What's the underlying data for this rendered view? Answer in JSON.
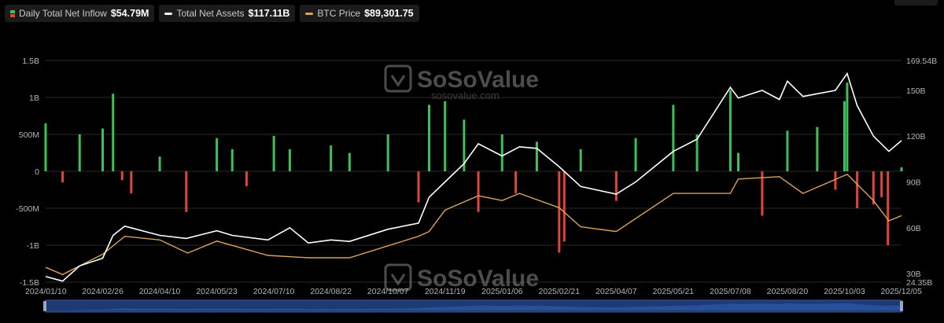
{
  "legend": {
    "inflow": {
      "label": "Daily Total Net Inflow",
      "value": "$54.79M",
      "icon": "bar-swatch-icon"
    },
    "assets": {
      "label": "Total Net Assets",
      "value": "$117.11B",
      "color": "#ffffff"
    },
    "btc": {
      "label": "BTC Price",
      "value": "$89,301.75",
      "color": "#d9a25a"
    }
  },
  "watermark": {
    "name": "SoSoValue",
    "url": "sosovalue.com"
  },
  "colors": {
    "inflow_pos": "#3fbf5a",
    "inflow_neg": "#e0453a",
    "assets": "#ffffff",
    "btc": "#d9a25a",
    "grid": "#2a2a2a",
    "navigator": "#1d3a73"
  },
  "chart_data": {
    "type": "bar+line",
    "grid": true,
    "x_ticks": [
      "2024/01/10",
      "2024/02/26",
      "2024/04/10",
      "2024/05/23",
      "2024/07/10",
      "2024/08/22",
      "2024/10/07",
      "2024/11/19",
      "2025/01/06",
      "2025/02/21",
      "2025/04/07",
      "2025/05/21",
      "2025/07/08",
      "2025/08/20",
      "2025/10/03",
      "2025/12/05"
    ],
    "left_axis": {
      "ticks": [
        "1.5B",
        "1B",
        "500M",
        "0",
        "-500M",
        "-1B",
        "-1.5B"
      ],
      "values": [
        1500,
        1000,
        500,
        0,
        -500,
        -1000,
        -1500
      ],
      "ylim": [
        -1500,
        1500
      ],
      "unit": "M"
    },
    "right_axis": {
      "ticks": [
        "169.54B",
        "150B",
        "120B",
        "90B",
        "60B",
        "30B",
        "24.35B"
      ],
      "values": [
        169.54,
        150,
        120,
        90,
        60,
        30,
        24.35
      ],
      "ylim": [
        24.35,
        169.54
      ],
      "unit": "B"
    },
    "series": [
      {
        "name": "Daily Total Net Inflow",
        "type": "bar",
        "axis": "left",
        "x": [
          "2024/01/10",
          "2024/01/24",
          "2024/02/07",
          "2024/02/26",
          "2024/03/05",
          "2024/03/12",
          "2024/03/19",
          "2024/04/10",
          "2024/04/30",
          "2024/05/23",
          "2024/06/05",
          "2024/06/17",
          "2024/07/10",
          "2024/07/22",
          "2024/08/22",
          "2024/09/06",
          "2024/10/07",
          "2024/10/30",
          "2024/11/07",
          "2024/11/19",
          "2024/12/05",
          "2024/12/17",
          "2025/01/06",
          "2025/01/17",
          "2025/02/03",
          "2025/02/21",
          "2025/02/25",
          "2025/03/10",
          "2025/04/07",
          "2025/04/22",
          "2025/05/21",
          "2025/06/10",
          "2025/07/08",
          "2025/07/14",
          "2025/08/01",
          "2025/08/20",
          "2025/09/12",
          "2025/09/26",
          "2025/10/03",
          "2025/10/06",
          "2025/10/17",
          "2025/11/04",
          "2025/11/13",
          "2025/11/20",
          "2025/12/05"
        ],
        "values": [
          650,
          -150,
          500,
          580,
          1050,
          -120,
          -300,
          200,
          -550,
          450,
          300,
          -200,
          480,
          300,
          350,
          250,
          500,
          -420,
          900,
          950,
          700,
          -550,
          500,
          -300,
          400,
          -1100,
          -950,
          300,
          -400,
          450,
          900,
          500,
          1100,
          250,
          -600,
          550,
          600,
          -250,
          950,
          1200,
          -500,
          -450,
          -350,
          -1000,
          55
        ]
      },
      {
        "name": "Total Net Assets",
        "type": "line",
        "axis": "right",
        "x": [
          "2024/01/10",
          "2024/01/24",
          "2024/02/07",
          "2024/02/26",
          "2024/03/05",
          "2024/03/14",
          "2024/04/10",
          "2024/04/30",
          "2024/05/23",
          "2024/06/05",
          "2024/07/05",
          "2024/07/22",
          "2024/08/05",
          "2024/08/22",
          "2024/09/06",
          "2024/10/07",
          "2024/10/30",
          "2024/11/07",
          "2024/11/19",
          "2024/12/05",
          "2024/12/17",
          "2025/01/06",
          "2025/01/20",
          "2025/02/03",
          "2025/02/21",
          "2025/03/10",
          "2025/04/07",
          "2025/04/22",
          "2025/05/21",
          "2025/06/10",
          "2025/07/08",
          "2025/07/14",
          "2025/08/01",
          "2025/08/14",
          "2025/08/20",
          "2025/09/01",
          "2025/09/26",
          "2025/10/06",
          "2025/10/17",
          "2025/11/04",
          "2025/11/21",
          "2025/12/05"
        ],
        "values": [
          28,
          25,
          35,
          40,
          55,
          61,
          55,
          53,
          58,
          55,
          52,
          60,
          50,
          52,
          51,
          59,
          63,
          80,
          90,
          102,
          115,
          107,
          113,
          112,
          100,
          87,
          82,
          90,
          110,
          118,
          152,
          145,
          150,
          144,
          156,
          146,
          150,
          161,
          140,
          120,
          110,
          117.11
        ]
      },
      {
        "name": "BTC Price",
        "type": "line",
        "axis": "right",
        "x": [
          "2024/01/10",
          "2024/01/24",
          "2024/02/26",
          "2024/03/14",
          "2024/04/10",
          "2024/05/01",
          "2024/05/23",
          "2024/07/05",
          "2024/08/05",
          "2024/09/06",
          "2024/10/30",
          "2024/11/07",
          "2024/11/19",
          "2024/12/17",
          "2025/01/06",
          "2025/01/20",
          "2025/02/21",
          "2025/03/10",
          "2025/04/07",
          "2025/05/21",
          "2025/07/08",
          "2025/07/14",
          "2025/08/14",
          "2025/09/01",
          "2025/10/06",
          "2025/11/04",
          "2025/11/21",
          "2025/12/05"
        ],
        "values": [
          46000,
          40000,
          57000,
          72000,
          69000,
          58000,
          68000,
          56000,
          54000,
          54000,
          72000,
          76000,
          94000,
          106000,
          102000,
          108000,
          96000,
          80000,
          76000,
          108000,
          108000,
          120000,
          122000,
          108000,
          124000,
          102000,
          85000,
          89301.75
        ]
      }
    ]
  }
}
